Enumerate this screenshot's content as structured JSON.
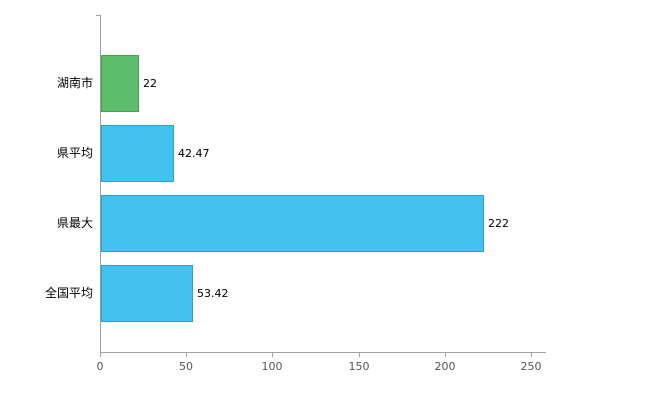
{
  "chart_data": {
    "type": "bar",
    "orientation": "horizontal",
    "title": "",
    "categories": [
      "湖南市",
      "県平均",
      "県最大",
      "全国平均"
    ],
    "values": [
      22,
      42.47,
      222,
      53.42
    ],
    "value_labels": [
      "22",
      "42.47",
      "222",
      "53.42"
    ],
    "series": [
      {
        "name": "",
        "values": [
          22,
          42.47,
          222,
          53.42
        ]
      }
    ],
    "bar_colors": [
      "#5cbe6a",
      "#45c1f0",
      "#45c1f0",
      "#45c1f0"
    ],
    "bar_border_colors": [
      "#43a352",
      "#29a3d4",
      "#29a3d4",
      "#29a3d4"
    ],
    "x_ticks": [
      "0",
      "50",
      "100",
      "150",
      "200",
      "250"
    ],
    "x_tick_values": [
      0,
      50,
      100,
      150,
      200,
      250
    ],
    "xlim": [
      0,
      258
    ],
    "xlabel": "",
    "ylabel": "",
    "grid": false,
    "legend": false,
    "axis_color": "#a0a0a0",
    "category_label_color": "#000000",
    "value_label_color": "#000000",
    "tick_label_color": "#555555",
    "background": "#ffffff"
  }
}
